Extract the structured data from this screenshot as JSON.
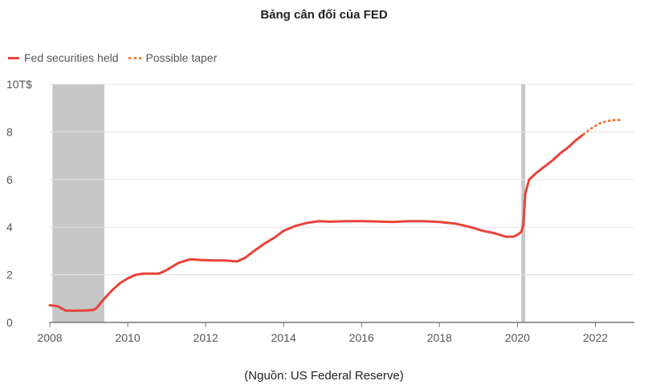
{
  "title": "Bảng cân đối của FED",
  "source": "(Nguồn: US Federal Reserve)",
  "colors": {
    "actual": "#e8433a",
    "projected": "#f07a3a",
    "shade": "#c6c6c6",
    "grid": "#e3e3e3",
    "axis": "#777777"
  },
  "chart_data": {
    "type": "line",
    "title": "Bảng cân đối của FED",
    "xlabel": "",
    "ylabel": "",
    "xlim": [
      2008,
      2023
    ],
    "ylim": [
      0,
      10
    ],
    "x_ticks": [
      2008,
      2010,
      2012,
      2014,
      2016,
      2018,
      2020,
      2022
    ],
    "x_tick_labels": [
      "2008",
      "2010",
      "2012",
      "2014",
      "2016",
      "2018",
      "2020",
      "2022"
    ],
    "y_ticks": [
      0,
      2,
      4,
      6,
      8,
      10
    ],
    "y_tick_labels": [
      "0",
      "2",
      "4",
      "6",
      "8",
      "10T$"
    ],
    "grid": true,
    "legend_position": "top-left",
    "shaded_periods": [
      [
        2008.07,
        2009.4
      ],
      [
        2020.1,
        2020.2
      ]
    ],
    "series": [
      {
        "name": "Fed securities held",
        "style": "solid",
        "x": [
          2008.0,
          2008.2,
          2008.4,
          2008.6,
          2008.9,
          2009.1,
          2009.2,
          2009.4,
          2009.6,
          2009.8,
          2010.0,
          2010.2,
          2010.4,
          2010.6,
          2010.8,
          2011.0,
          2011.3,
          2011.6,
          2011.9,
          2012.2,
          2012.5,
          2012.8,
          2013.0,
          2013.2,
          2013.5,
          2013.8,
          2014.0,
          2014.3,
          2014.6,
          2014.9,
          2015.2,
          2015.6,
          2016.0,
          2016.4,
          2016.8,
          2017.2,
          2017.6,
          2018.0,
          2018.4,
          2018.8,
          2019.1,
          2019.4,
          2019.7,
          2019.9,
          2020.0,
          2020.1,
          2020.15,
          2020.2,
          2020.3,
          2020.5,
          2020.7,
          2020.9,
          2021.1,
          2021.3,
          2021.5,
          2021.7
        ],
        "y": [
          0.72,
          0.68,
          0.5,
          0.49,
          0.5,
          0.52,
          0.6,
          1.0,
          1.35,
          1.65,
          1.85,
          2.0,
          2.05,
          2.05,
          2.05,
          2.2,
          2.5,
          2.65,
          2.62,
          2.6,
          2.6,
          2.56,
          2.7,
          2.95,
          3.3,
          3.6,
          3.85,
          4.05,
          4.18,
          4.25,
          4.23,
          4.25,
          4.25,
          4.24,
          4.22,
          4.25,
          4.25,
          4.22,
          4.15,
          4.0,
          3.85,
          3.75,
          3.6,
          3.6,
          3.68,
          3.8,
          4.1,
          5.4,
          6.0,
          6.3,
          6.55,
          6.8,
          7.1,
          7.35,
          7.65,
          7.9
        ]
      },
      {
        "name": "Possible taper",
        "style": "dotted",
        "x": [
          2021.7,
          2021.9,
          2022.1,
          2022.3,
          2022.5,
          2022.7
        ],
        "y": [
          7.9,
          8.15,
          8.35,
          8.45,
          8.5,
          8.5
        ]
      }
    ]
  }
}
